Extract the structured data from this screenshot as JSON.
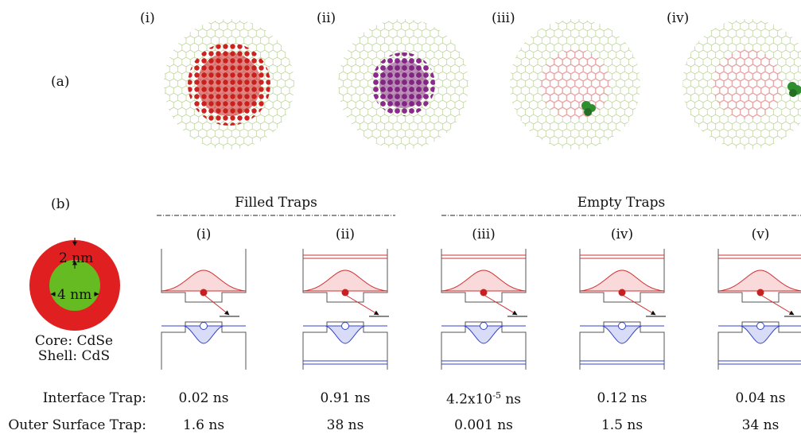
{
  "panel_a": {
    "label": "(a)",
    "subpanels": [
      "(i)",
      "(ii)",
      "(iii)",
      "(iv)"
    ],
    "colors": {
      "lattice": "#a8c878",
      "electron": "#cc2222",
      "hole": "#8a2a8a",
      "faded": "#e8b4b4",
      "trap": "#2f8f2f"
    }
  },
  "panel_b": {
    "label": "(b)",
    "groups": {
      "filled": "Filled Traps",
      "empty": "Empty Traps"
    },
    "columns": [
      "(i)",
      "(ii)",
      "(iii)",
      "(iv)",
      "(v)"
    ],
    "schematic": {
      "shell_label": "2 nm",
      "core_label": "4 nm",
      "core_text": "Core: CdSe",
      "shell_text": "Shell: CdS",
      "colors": {
        "shell": "#e02020",
        "core": "#66bb22"
      }
    },
    "rows": [
      {
        "label": "Interface Trap:",
        "values": [
          "0.02 ns",
          "0.91 ns",
          "4.2x10",
          "0.12 ns",
          "0.04 ns"
        ],
        "exp_index": 2,
        "exp": "-5",
        "exp_suffix": " ns"
      },
      {
        "label": "Outer Surface Trap:",
        "values": [
          "1.6 ns",
          "38 ns",
          "0.001 ns",
          "1.5 ns",
          "34 ns"
        ]
      }
    ]
  }
}
